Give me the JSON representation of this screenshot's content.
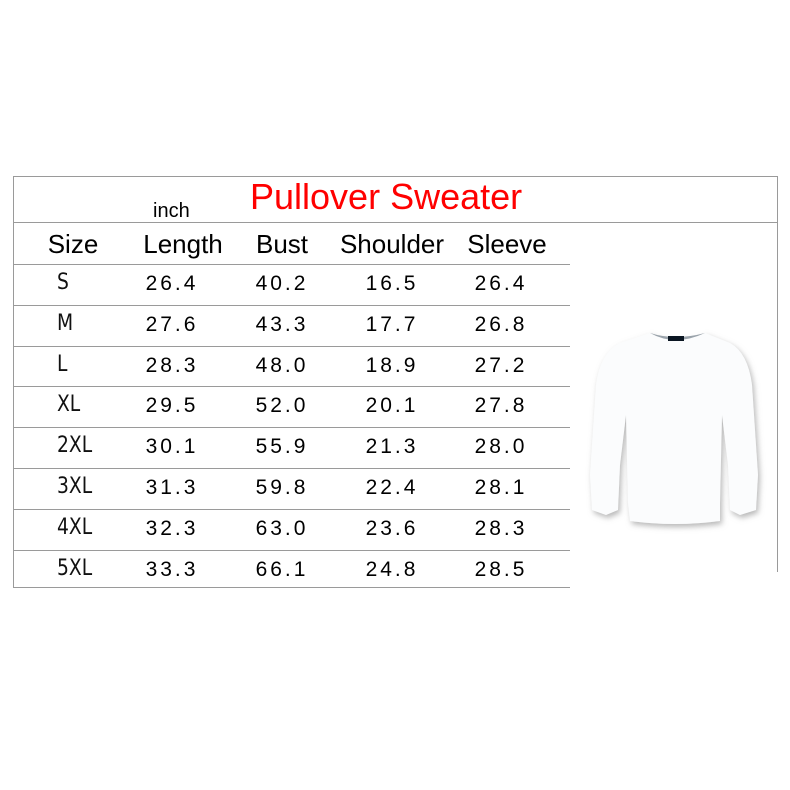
{
  "title": "Pullover Sweater",
  "unit": "inch",
  "columns": [
    "Size",
    "Length",
    "Bust",
    "Shoulder",
    "Sleeve"
  ],
  "rows": [
    [
      "S",
      "26.4",
      "40.2",
      "16.5",
      "26.4"
    ],
    [
      "M",
      "27.6",
      "43.3",
      "17.7",
      "26.8"
    ],
    [
      "L",
      "28.3",
      "48.0",
      "18.9",
      "27.2"
    ],
    [
      "XL",
      "29.5",
      "52.0",
      "20.1",
      "27.8"
    ],
    [
      "2XL",
      "30.1",
      "55.9",
      "21.3",
      "28.0"
    ],
    [
      "3XL",
      "31.3",
      "59.8",
      "22.4",
      "28.1"
    ],
    [
      "4XL",
      "32.3",
      "63.0",
      "23.6",
      "28.3"
    ],
    [
      "5XL",
      "33.3",
      "66.1",
      "24.8",
      "28.5"
    ]
  ],
  "colors": {
    "title": "#ff0000",
    "border": "#9a9a9a"
  },
  "image": "white-pullover-sweater"
}
